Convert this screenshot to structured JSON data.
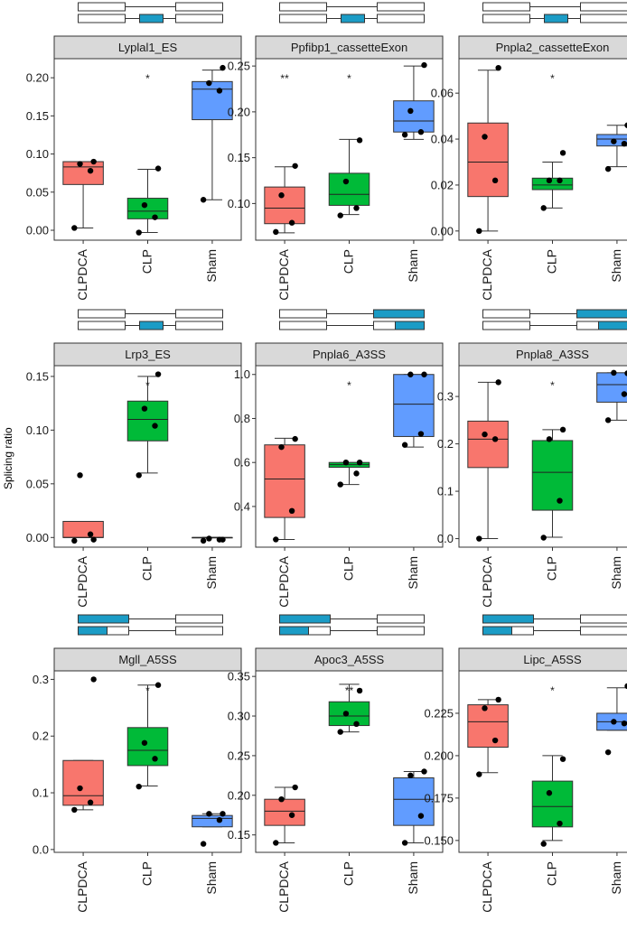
{
  "figure": {
    "ylabel": "Splicing ratio",
    "group_colors": {
      "CLPDCA": "#F8766D",
      "CLP": "#00BA38",
      "Sham": "#619CFF"
    },
    "strip_color": "#D9D9D9",
    "exon_fill": "#1B9CC6"
  },
  "chart_data": [
    {
      "type": "box",
      "title": "Lyplal1_ES",
      "event": "ES",
      "categories": [
        "CLPDCA",
        "CLP",
        "Sham"
      ],
      "ylim": [
        -0.013,
        0.225
      ],
      "yticks": [
        0.0,
        0.05,
        0.1,
        0.15,
        0.2
      ],
      "yticklabels": [
        "0.00",
        "0.05",
        "0.10",
        "0.15",
        "0.20"
      ],
      "significance": [
        "",
        "*",
        ""
      ],
      "boxes": [
        {
          "min": 0.003,
          "q1": 0.06,
          "median": 0.083,
          "q3": 0.09,
          "max": 0.09,
          "points": [
            0.003,
            0.078,
            0.087,
            0.09
          ]
        },
        {
          "min": -0.003,
          "q1": 0.015,
          "median": 0.025,
          "q3": 0.042,
          "max": 0.08,
          "points": [
            -0.003,
            0.017,
            0.033,
            0.081
          ]
        },
        {
          "min": 0.04,
          "q1": 0.145,
          "median": 0.185,
          "q3": 0.195,
          "max": 0.21,
          "points": [
            0.04,
            0.183,
            0.193,
            0.213
          ]
        }
      ]
    },
    {
      "type": "box",
      "title": "Ppfibp1_cassetteExon",
      "event": "ES",
      "categories": [
        "CLPDCA",
        "CLP",
        "Sham"
      ],
      "ylim": [
        0.06,
        0.258
      ],
      "yticks": [
        0.1,
        0.15,
        0.2,
        0.25
      ],
      "yticklabels": [
        "0.10",
        "0.15",
        "0.20",
        "0.25"
      ],
      "significance": [
        "**",
        "*",
        ""
      ],
      "boxes": [
        {
          "min": 0.068,
          "q1": 0.078,
          "median": 0.095,
          "q3": 0.118,
          "max": 0.14,
          "points": [
            0.069,
            0.079,
            0.109,
            0.141
          ]
        },
        {
          "min": 0.088,
          "q1": 0.098,
          "median": 0.11,
          "q3": 0.133,
          "max": 0.17,
          "points": [
            0.087,
            0.095,
            0.124,
            0.169
          ]
        },
        {
          "min": 0.17,
          "q1": 0.178,
          "median": 0.19,
          "q3": 0.212,
          "max": 0.25,
          "points": [
            0.175,
            0.178,
            0.201,
            0.251
          ]
        }
      ]
    },
    {
      "type": "box",
      "title": "Pnpla2_cassetteExon",
      "event": "ES",
      "categories": [
        "CLPDCA",
        "CLP",
        "Sham"
      ],
      "ylim": [
        -0.004,
        0.075
      ],
      "yticks": [
        0.0,
        0.02,
        0.04,
        0.06
      ],
      "yticklabels": [
        "0.00",
        "0.02",
        "0.04",
        "0.06"
      ],
      "significance": [
        "",
        "*",
        ""
      ],
      "boxes": [
        {
          "min": 0.0,
          "q1": 0.015,
          "median": 0.03,
          "q3": 0.047,
          "max": 0.07,
          "points": [
            0.0,
            0.022,
            0.041,
            0.071
          ]
        },
        {
          "min": 0.01,
          "q1": 0.018,
          "median": 0.02,
          "q3": 0.023,
          "max": 0.03,
          "points": [
            0.01,
            0.022,
            0.022,
            0.034
          ]
        },
        {
          "min": 0.028,
          "q1": 0.037,
          "median": 0.04,
          "q3": 0.042,
          "max": 0.046,
          "points": [
            0.027,
            0.038,
            0.039,
            0.046
          ]
        }
      ]
    },
    {
      "type": "box",
      "title": "Lrp3_ES",
      "event": "ES",
      "categories": [
        "CLPDCA",
        "CLP",
        "Sham"
      ],
      "ylim": [
        -0.009,
        0.16
      ],
      "yticks": [
        0.0,
        0.05,
        0.1,
        0.15
      ],
      "yticklabels": [
        "0.00",
        "0.05",
        "0.10",
        "0.15"
      ],
      "significance": [
        "",
        "*",
        ""
      ],
      "boxes": [
        {
          "min": 0.0,
          "q1": 0.0,
          "median": 0.0,
          "q3": 0.015,
          "max": 0.015,
          "points": [
            -0.003,
            0.003,
            0.058,
            -0.002
          ]
        },
        {
          "min": 0.06,
          "q1": 0.09,
          "median": 0.11,
          "q3": 0.127,
          "max": 0.15,
          "points": [
            0.058,
            0.104,
            0.12,
            0.152
          ]
        },
        {
          "min": 0.0,
          "q1": 0.0,
          "median": 0.0,
          "q3": 0.0,
          "max": 0.0,
          "points": [
            -0.003,
            -0.002,
            -0.001,
            -0.002
          ]
        }
      ]
    },
    {
      "type": "box",
      "title": "Pnpla6_A3SS",
      "event": "A3SS",
      "categories": [
        "CLPDCA",
        "CLP",
        "Sham"
      ],
      "ylim": [
        0.215,
        1.04
      ],
      "yticks": [
        0.4,
        0.6,
        0.8,
        1.0
      ],
      "yticklabels": [
        "0.4",
        "0.6",
        "0.8",
        "1.0"
      ],
      "significance": [
        "",
        "*",
        ""
      ],
      "boxes": [
        {
          "min": 0.25,
          "q1": 0.35,
          "median": 0.525,
          "q3": 0.68,
          "max": 0.71,
          "points": [
            0.25,
            0.38,
            0.67,
            0.707
          ]
        },
        {
          "min": 0.5,
          "q1": 0.578,
          "median": 0.59,
          "q3": 0.6,
          "max": 0.6,
          "points": [
            0.5,
            0.55,
            0.6,
            0.6
          ]
        },
        {
          "min": 0.67,
          "q1": 0.718,
          "median": 0.865,
          "q3": 1.0,
          "max": 1.0,
          "points": [
            0.68,
            0.73,
            1.0,
            1.0
          ]
        }
      ]
    },
    {
      "type": "box",
      "title": "Pnpla8_A3SS",
      "event": "A3SS",
      "categories": [
        "CLPDCA",
        "CLP",
        "Sham"
      ],
      "ylim": [
        -0.018,
        0.365
      ],
      "yticks": [
        0.0,
        0.1,
        0.2,
        0.3
      ],
      "yticklabels": [
        "0.0",
        "0.1",
        "0.2",
        "0.3"
      ],
      "significance": [
        "",
        "*",
        ""
      ],
      "boxes": [
        {
          "min": 0.0,
          "q1": 0.15,
          "median": 0.21,
          "q3": 0.248,
          "max": 0.33,
          "points": [
            0.0,
            0.21,
            0.22,
            0.33
          ]
        },
        {
          "min": 0.003,
          "q1": 0.06,
          "median": 0.14,
          "q3": 0.207,
          "max": 0.23,
          "points": [
            0.002,
            0.08,
            0.21,
            0.23
          ]
        },
        {
          "min": 0.25,
          "q1": 0.288,
          "median": 0.325,
          "q3": 0.35,
          "max": 0.35,
          "points": [
            0.25,
            0.305,
            0.35,
            0.349
          ]
        }
      ]
    },
    {
      "type": "box",
      "title": "Mgll_A5SS",
      "event": "A5SS",
      "categories": [
        "CLPDCA",
        "CLP",
        "Sham"
      ],
      "ylim": [
        -0.005,
        0.315
      ],
      "yticks": [
        0.0,
        0.1,
        0.2,
        0.3
      ],
      "yticklabels": [
        "0.0",
        "0.1",
        "0.2",
        "0.3"
      ],
      "significance": [
        "",
        "*",
        ""
      ],
      "boxes": [
        {
          "min": 0.07,
          "q1": 0.078,
          "median": 0.095,
          "q3": 0.157,
          "max": 0.157,
          "points": [
            0.07,
            0.083,
            0.108,
            0.3
          ]
        },
        {
          "min": 0.112,
          "q1": 0.148,
          "median": 0.175,
          "q3": 0.215,
          "max": 0.29,
          "points": [
            0.111,
            0.16,
            0.188,
            0.29
          ]
        },
        {
          "min": 0.04,
          "q1": 0.04,
          "median": 0.055,
          "q3": 0.06,
          "max": 0.063,
          "points": [
            0.01,
            0.052,
            0.063,
            0.063
          ]
        }
      ]
    },
    {
      "type": "box",
      "title": "Apoc3_A5SS",
      "event": "A5SS",
      "categories": [
        "CLPDCA",
        "CLP",
        "Sham"
      ],
      "ylim": [
        0.128,
        0.357
      ],
      "yticks": [
        0.15,
        0.2,
        0.25,
        0.3,
        0.35
      ],
      "yticklabels": [
        "0.15",
        "0.20",
        "0.25",
        "0.30",
        "0.35"
      ],
      "significance": [
        "",
        "**",
        ""
      ],
      "boxes": [
        {
          "min": 0.14,
          "q1": 0.162,
          "median": 0.18,
          "q3": 0.195,
          "max": 0.21,
          "points": [
            0.14,
            0.175,
            0.195,
            0.21
          ]
        },
        {
          "min": 0.28,
          "q1": 0.288,
          "median": 0.3,
          "q3": 0.318,
          "max": 0.34,
          "points": [
            0.28,
            0.29,
            0.303,
            0.332
          ]
        },
        {
          "min": 0.14,
          "q1": 0.162,
          "median": 0.195,
          "q3": 0.222,
          "max": 0.23,
          "points": [
            0.14,
            0.174,
            0.225,
            0.23
          ]
        }
      ]
    },
    {
      "type": "box",
      "title": "Lipc_A5SS",
      "event": "A5SS",
      "categories": [
        "CLPDCA",
        "CLP",
        "Sham"
      ],
      "ylim": [
        0.143,
        0.25
      ],
      "yticks": [
        0.15,
        0.175,
        0.2,
        0.225
      ],
      "yticklabels": [
        "0.150",
        "0.175",
        "0.200",
        "0.225"
      ],
      "significance": [
        "",
        "*",
        ""
      ],
      "boxes": [
        {
          "min": 0.19,
          "q1": 0.205,
          "median": 0.22,
          "q3": 0.23,
          "max": 0.233,
          "points": [
            0.189,
            0.209,
            0.228,
            0.233
          ]
        },
        {
          "min": 0.15,
          "q1": 0.158,
          "median": 0.17,
          "q3": 0.185,
          "max": 0.2,
          "points": [
            0.148,
            0.16,
            0.178,
            0.198
          ]
        },
        {
          "min": 0.215,
          "q1": 0.215,
          "median": 0.22,
          "q3": 0.225,
          "max": 0.24,
          "points": [
            0.202,
            0.219,
            0.22,
            0.241
          ]
        }
      ]
    }
  ]
}
